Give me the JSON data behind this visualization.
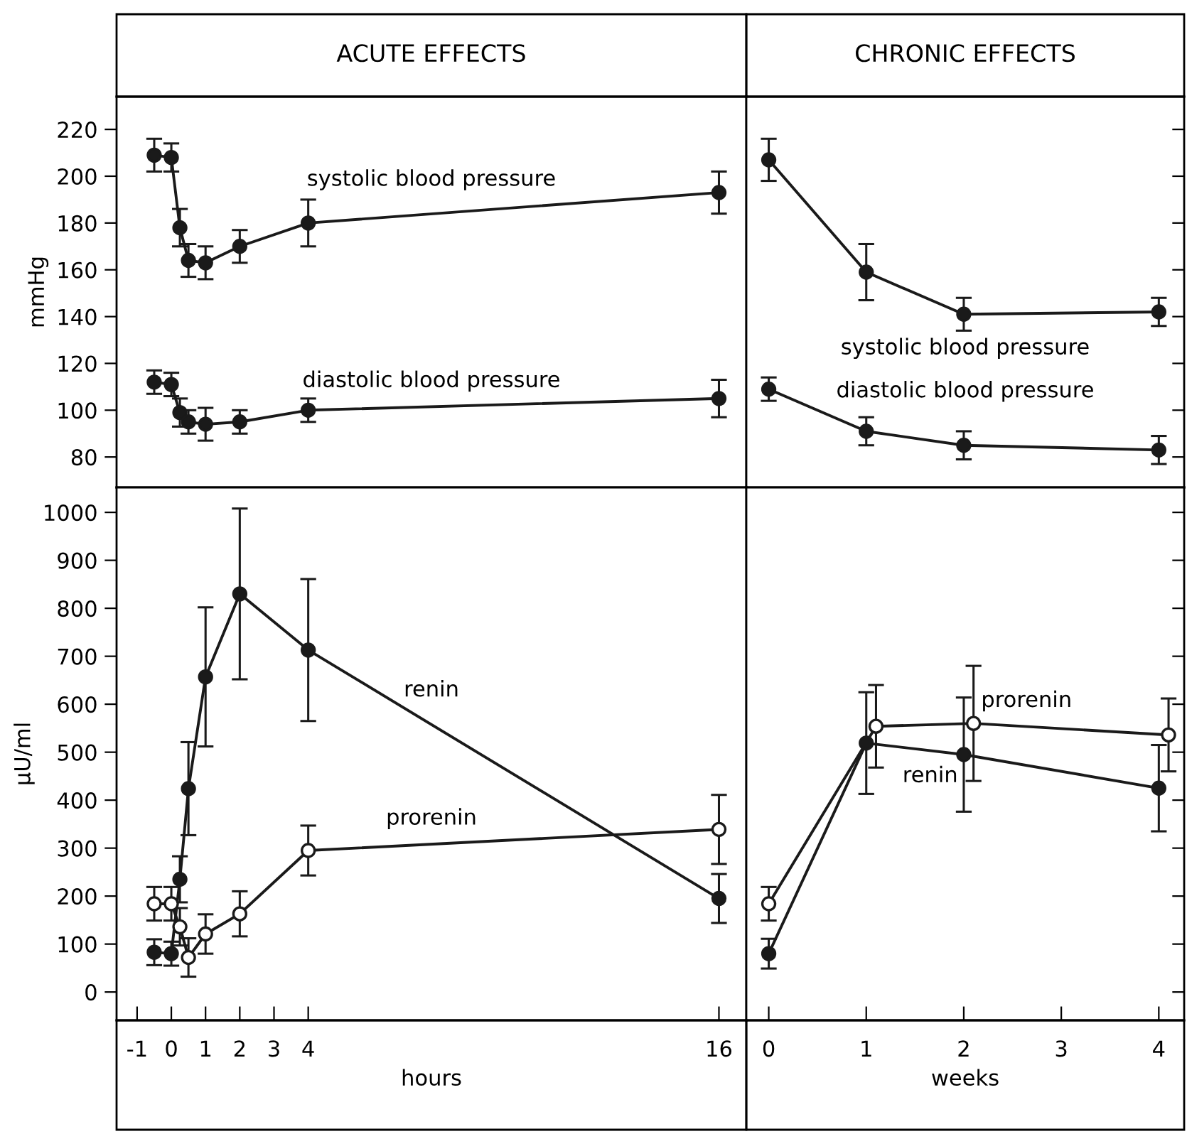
{
  "chart_data": [
    {
      "type": "line",
      "title": "ACUTE EFFECTS",
      "ylabel": "mmHg",
      "x": [
        -0.5,
        0,
        0.25,
        0.5,
        1,
        2,
        4,
        16
      ],
      "xlim": [
        -1.6,
        16.8
      ],
      "ylim": [
        67,
        234
      ],
      "yticks": [
        80,
        100,
        120,
        140,
        160,
        180,
        200,
        220
      ],
      "tick_labels": "y",
      "marker": "circle",
      "series": [
        {
          "name": "systolic blood pressure",
          "color": "#1a1a1a",
          "values": [
            209,
            208,
            178,
            164,
            163,
            170,
            180,
            193
          ],
          "errors": [
            7,
            6,
            8,
            7,
            7,
            7,
            10,
            9
          ]
        },
        {
          "name": "diastolic blood pressure",
          "color": "#1a1a1a",
          "values": [
            112,
            111,
            99,
            95,
            94,
            95,
            100,
            105
          ],
          "errors": [
            5,
            5,
            6,
            5,
            7,
            5,
            5,
            8
          ]
        }
      ]
    },
    {
      "type": "line",
      "title": "CHRONIC EFFECTS",
      "x": [
        0,
        1,
        2,
        4
      ],
      "xlim": [
        -0.23,
        4.26
      ],
      "ylim": [
        67,
        234
      ],
      "yticks": [
        80,
        100,
        120,
        140,
        160,
        180,
        200,
        220
      ],
      "tick_labels": false,
      "marker": "circle",
      "series": [
        {
          "name": "systolic blood pressure",
          "color": "#1a1a1a",
          "values": [
            207,
            159,
            141,
            142
          ],
          "errors": [
            9,
            12,
            7,
            6
          ]
        },
        {
          "name": "diastolic blood pressure",
          "color": "#1a1a1a",
          "values": [
            109,
            91,
            85,
            83
          ],
          "errors": [
            5,
            6,
            6,
            6
          ]
        }
      ]
    },
    {
      "type": "line",
      "xlabel": "hours",
      "ylabel": "μU/ml",
      "x": [
        -0.5,
        0,
        0.25,
        0.5,
        1,
        2,
        4,
        16
      ],
      "xlim": [
        -1.6,
        16.8
      ],
      "ylim": [
        -59,
        1052
      ],
      "xticks": [
        -1,
        0,
        1,
        2,
        3,
        4,
        16
      ],
      "yticks": [
        0,
        100,
        200,
        300,
        400,
        500,
        600,
        700,
        800,
        900,
        1000
      ],
      "marker": "circle",
      "series": [
        {
          "name": "renin",
          "color": "#1a1a1a",
          "values": [
            83,
            80,
            235,
            424,
            657,
            830,
            713,
            195
          ],
          "errors": [
            27,
            25,
            48,
            97,
            145,
            178,
            148,
            51
          ]
        },
        {
          "name": "prorenin",
          "color": "#1a1a1a",
          "colors": [
            "#ffffff",
            "#ffffff",
            "#ffffff",
            "#ffffff",
            "#ffffff",
            "#ffffff",
            "#ffffff",
            "#ffffff"
          ],
          "values": [
            184,
            184,
            136,
            72,
            121,
            163,
            295,
            339
          ],
          "errors": [
            35,
            35,
            39,
            40,
            41,
            47,
            52,
            72
          ]
        }
      ]
    },
    {
      "type": "line",
      "xlabel": "weeks",
      "xlim": [
        -0.23,
        4.26
      ],
      "ylim": [
        -59,
        1052
      ],
      "xticks": [
        0,
        1,
        2,
        3,
        4
      ],
      "yticks": [
        0,
        100,
        200,
        300,
        400,
        500,
        600,
        700,
        800,
        900,
        1000
      ],
      "tick_labels": "x",
      "marker": "circle",
      "series": [
        {
          "name": "prorenin",
          "color": "#1a1a1a",
          "colors": [
            "#ffffff",
            "#ffffff",
            "#ffffff",
            "#ffffff"
          ],
          "x": [
            0,
            1.1,
            2.1,
            4.1
          ],
          "values": [
            184,
            554,
            560,
            536
          ],
          "errors": [
            35,
            86,
            120,
            76
          ]
        },
        {
          "name": "renin",
          "color": "#1a1a1a",
          "x": [
            0,
            1,
            2,
            4
          ],
          "values": [
            80,
            519,
            495,
            425
          ],
          "errors": [
            31,
            106,
            119,
            90
          ]
        }
      ]
    }
  ]
}
